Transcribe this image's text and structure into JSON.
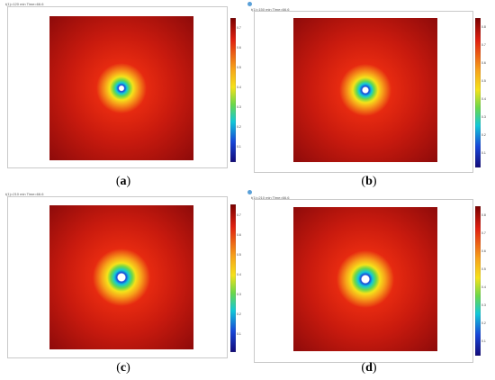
{
  "panels": [
    {
      "id": "a",
      "caption_letter": "a",
      "title": "t(1)=120 min  Time=66.6",
      "hole_size": "small",
      "bar_ticks": [
        "0.7",
        "0.6",
        "0.5",
        "0.4",
        "0.3",
        "0.2",
        "0.1"
      ]
    },
    {
      "id": "b",
      "caption_letter": "b",
      "title": "t(1)=150 min  Time=66.6",
      "hole_size": "small",
      "bar_ticks": [
        "0.8",
        "0.7",
        "0.6",
        "0.5",
        "0.4",
        "0.3",
        "0.2",
        "0.1"
      ]
    },
    {
      "id": "c",
      "caption_letter": "c",
      "title": "t(1)=210 min  Time=66.6",
      "hole_size": "medium",
      "bar_ticks": [
        "0.7",
        "0.6",
        "0.5",
        "0.4",
        "0.3",
        "0.2",
        "0.1"
      ]
    },
    {
      "id": "d",
      "caption_letter": "d",
      "title": "t(1)=210 min  Time=66.6",
      "hole_size": "medium",
      "bar_ticks": [
        "0.8",
        "0.7",
        "0.6",
        "0.5",
        "0.4",
        "0.3",
        "0.2",
        "0.1"
      ]
    }
  ],
  "colors": {
    "field_outer": "#8b0a0a",
    "field_mid": "#e62a10",
    "ring_yellow": "#f5e21a",
    "ring_green": "#6ad84a",
    "ring_cyan": "#12c8d8",
    "ring_blue": "#1846d8",
    "hole": "#ffffff",
    "logo": "#5aa0d8"
  }
}
